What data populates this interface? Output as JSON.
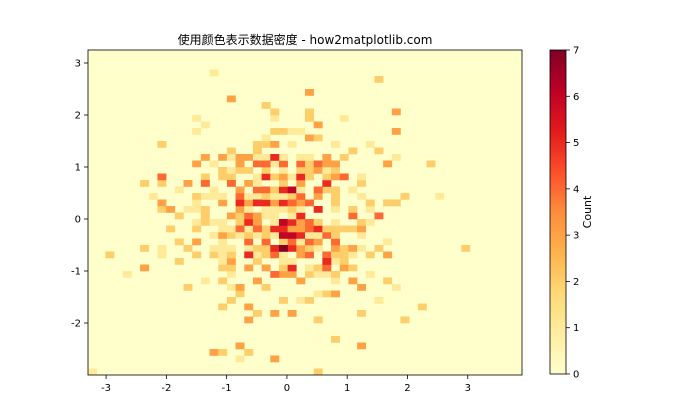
{
  "chart_data": {
    "type": "heatmap",
    "title": "使用颜色表示数据密度 - how2matplotlib.com",
    "xlabel": "",
    "ylabel": "",
    "xlim": [
      -3.3,
      3.9
    ],
    "ylim": [
      -3.0,
      3.25
    ],
    "x_ticks": [
      -3,
      -2,
      -1,
      0,
      1,
      2,
      3
    ],
    "x_tick_labels": [
      "-3",
      "-2",
      "-1",
      "0",
      "1",
      "2",
      "3"
    ],
    "y_ticks": [
      -2,
      -1,
      0,
      1,
      2,
      3
    ],
    "y_tick_labels": [
      "-2",
      "-1",
      "0",
      "1",
      "2",
      "3"
    ],
    "colormap": "YlOrRd",
    "colormap_stops": [
      "#ffffcc",
      "#ffeda0",
      "#fed976",
      "#feb24c",
      "#fd8d3c",
      "#fc4e2a",
      "#e31a1c",
      "#bd0026",
      "#800026"
    ],
    "colorbar": {
      "label": "Count",
      "min": 0,
      "max": 7,
      "ticks": [
        0,
        1,
        2,
        3,
        4,
        5,
        6,
        7
      ],
      "tick_labels": [
        "0",
        "1",
        "2",
        "3",
        "4",
        "5",
        "6",
        "7"
      ]
    },
    "bins": {
      "x_start": -3.3,
      "x_step": 0.144,
      "y_start": -3.0,
      "y_step": 0.125,
      "nx": 50,
      "ny": 50
    },
    "cells": [
      [
        0.3,
        0.3,
        4
      ],
      [
        0.2,
        0.0,
        5
      ],
      [
        0.15,
        0.3,
        4
      ],
      [
        0.35,
        -0.1,
        4
      ],
      [
        0.5,
        0.2,
        4
      ],
      [
        -0.5,
        -0.2,
        4
      ],
      [
        -0.6,
        0.1,
        4
      ],
      [
        -0.7,
        -0.4,
        4
      ],
      [
        0.05,
        -0.5,
        4
      ],
      [
        -0.25,
        -0.65,
        4
      ],
      [
        0.7,
        -0.65,
        4
      ],
      [
        0.55,
        0.5,
        4
      ],
      [
        -0.3,
        0.6,
        4
      ],
      [
        -0.45,
        0.55,
        4
      ],
      [
        -0.75,
        0.45,
        4
      ],
      [
        -0.9,
        0.7,
        4
      ],
      [
        1.0,
        0.85,
        4
      ],
      [
        1.55,
        0.0,
        4
      ],
      [
        -2.05,
        0.8,
        4
      ],
      [
        -0.8,
        -0.25,
        4
      ],
      [
        -1.35,
        0.65,
        4
      ],
      [
        0.4,
        -0.5,
        4
      ],
      [
        0.65,
        -0.3,
        4
      ],
      [
        -0.15,
        -1.05,
        4
      ],
      [
        0.6,
        -0.9,
        4
      ],
      [
        0.3,
        -0.75,
        4
      ],
      [
        -0.6,
        -0.75,
        4
      ],
      [
        0.25,
        0.45,
        4
      ],
      [
        0.3,
        -0.25,
        4
      ],
      [
        0.55,
        1.1,
        4
      ],
      [
        -0.05,
        1.1,
        4
      ],
      [
        0.2,
        1.05,
        4
      ],
      [
        -0.4,
        1.1,
        4
      ],
      [
        -0.55,
        1.1,
        4
      ],
      [
        0.75,
        -0.45,
        4
      ],
      [
        -0.35,
        -0.5,
        4
      ],
      [
        1.05,
        0.1,
        4
      ],
      [
        0.45,
        0.15,
        5
      ],
      [
        -0.05,
        0.25,
        5
      ],
      [
        0.1,
        -0.05,
        5
      ],
      [
        -0.3,
        0.35,
        5
      ],
      [
        0.25,
        -0.35,
        5
      ],
      [
        -0.6,
        -0.05,
        5
      ],
      [
        -0.2,
        -0.55,
        5
      ],
      [
        0.25,
        0.75,
        5
      ],
      [
        0.65,
        -0.8,
        5
      ],
      [
        0.15,
        -0.6,
        5
      ],
      [
        -0.45,
        0.25,
        5
      ],
      [
        0.55,
        -0.2,
        5
      ],
      [
        -0.85,
        0.35,
        5
      ],
      [
        -0.4,
        0.85,
        5
      ],
      [
        -0.25,
        1.15,
        5
      ],
      [
        0.25,
        0.85,
        5
      ],
      [
        0.15,
        -0.9,
        5
      ],
      [
        -0.25,
        -0.15,
        5
      ],
      [
        0.7,
        0.7,
        5
      ],
      [
        -0.7,
        -0.7,
        5
      ],
      [
        0.0,
        0.55,
        5
      ],
      [
        -0.05,
        -0.2,
        5
      ],
      [
        0.0,
        -0.05,
        6
      ],
      [
        0.1,
        0.55,
        6
      ],
      [
        0.15,
        -0.35,
        6
      ],
      [
        -0.1,
        -0.35,
        6
      ],
      [
        -0.05,
        -0.55,
        7
      ]
    ],
    "background_count": 1,
    "noise_seed": 7
  }
}
